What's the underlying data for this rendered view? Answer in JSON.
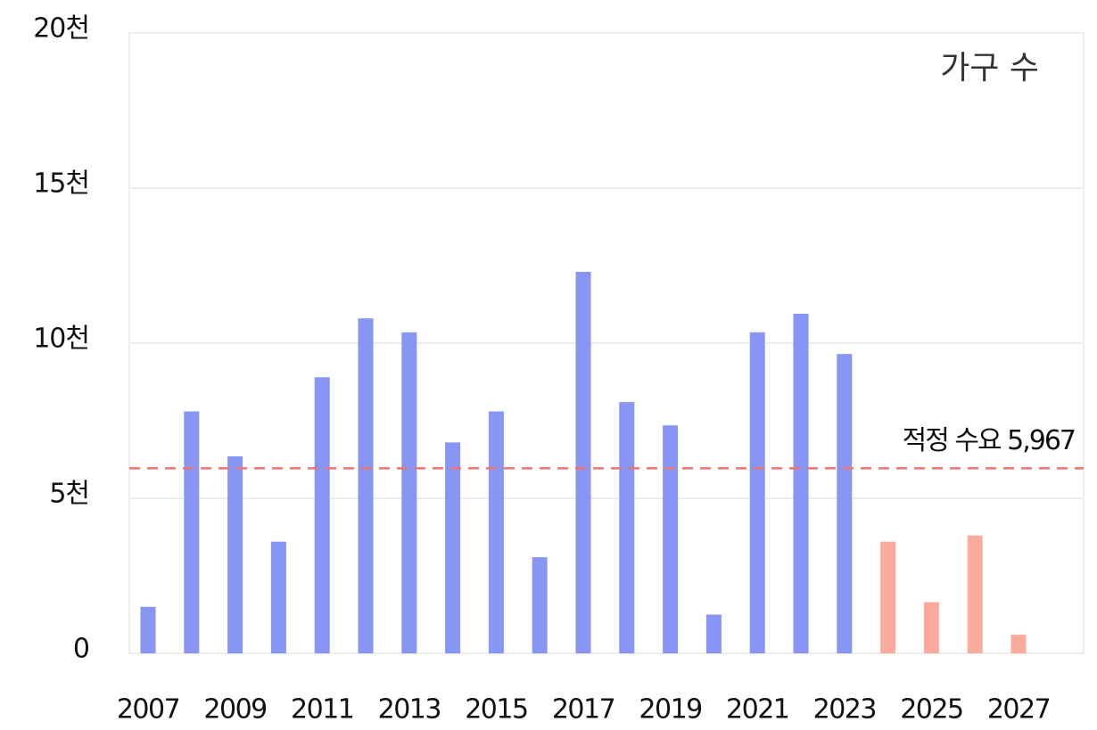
{
  "chart_data": {
    "type": "bar",
    "annotation": "가구 수",
    "categories": [
      "2007",
      null,
      "2009",
      null,
      "2011",
      null,
      "2013",
      null,
      "2015",
      null,
      "2017",
      null,
      "2019",
      null,
      "2021",
      null,
      "2023",
      null,
      "2025",
      null,
      "2027"
    ],
    "values": [
      1500,
      7800,
      6350,
      3600,
      8900,
      10800,
      10350,
      6800,
      7800,
      3100,
      12300,
      8100,
      7350,
      1250,
      10350,
      10950,
      9650,
      3600,
      1650,
      3800,
      600
    ],
    "colors": [
      "#8796f5",
      "#8796f5",
      "#8796f5",
      "#8796f5",
      "#8796f5",
      "#8796f5",
      "#8796f5",
      "#8796f5",
      "#8796f5",
      "#8796f5",
      "#8796f5",
      "#8796f5",
      "#8796f5",
      "#8796f5",
      "#8796f5",
      "#8796f5",
      "#8796f5",
      "#fbab9b",
      "#fbab9b",
      "#fbab9b",
      "#fbab9b"
    ],
    "ylim": [
      0,
      20000
    ],
    "yticks": [
      0,
      {
        "value": 5000,
        "label": "5천"
      },
      {
        "value": 10000,
        "label": "10천"
      },
      {
        "value": 15000,
        "label": "15천"
      },
      {
        "value": 20000,
        "label": "20천"
      }
    ],
    "grid": true,
    "reference_line": {
      "value": 5967,
      "label": "적정 수요 5,967",
      "color": "#f07272"
    }
  }
}
